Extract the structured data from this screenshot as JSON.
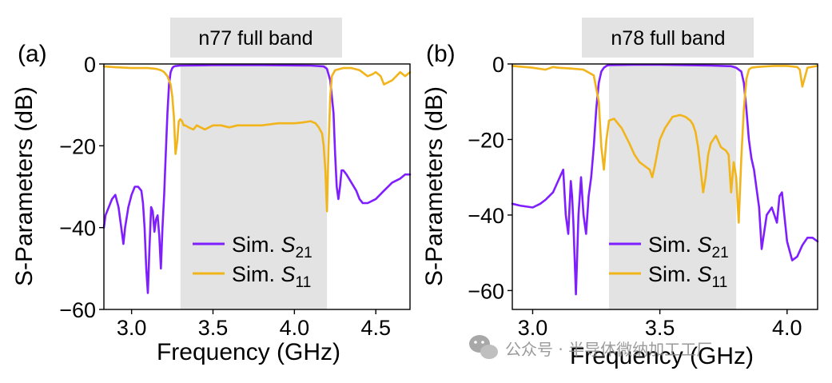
{
  "watermark": {
    "text": "公众号 · 半导体微纳加工工厂",
    "icon": "wechat-icon"
  },
  "colors": {
    "s21": "#7f1fff",
    "s11": "#f2b41b",
    "band": "#e3e3e3"
  },
  "chart_data": [
    {
      "type": "line",
      "panel": "(a)",
      "title": "n77 full band",
      "xlabel": "Frequency (GHz)",
      "ylabel": "S-Parameters (dB)",
      "xlim": [
        2.83,
        4.71
      ],
      "ylim": [
        -60,
        0
      ],
      "xticks": [
        {
          "v": 3.0,
          "label": "3.0"
        },
        {
          "v": 3.5,
          "label": "3.5"
        },
        {
          "v": 4.0,
          "label": "4.0"
        },
        {
          "v": 4.5,
          "label": "4.5"
        }
      ],
      "yticks": [
        {
          "v": 0,
          "label": "0"
        },
        {
          "v": -20,
          "label": "−20"
        },
        {
          "v": -40,
          "label": "−40"
        },
        {
          "v": -60,
          "label": "−60"
        }
      ],
      "band": [
        3.3,
        4.2
      ],
      "legend": {
        "s21_prefix": "Sim. ",
        "s21_sym": "S",
        "s21_sub": "21",
        "s11_prefix": "Sim. ",
        "s11_sym": "S",
        "s11_sub": "11"
      },
      "series": [
        {
          "name": "Sim. S21",
          "key": "s21",
          "x": [
            2.83,
            2.84,
            2.86,
            2.88,
            2.9,
            2.92,
            2.94,
            2.95,
            2.96,
            2.98,
            3.0,
            3.02,
            3.04,
            3.06,
            3.07,
            3.08,
            3.09,
            3.1,
            3.11,
            3.12,
            3.13,
            3.14,
            3.15,
            3.16,
            3.17,
            3.18,
            3.19,
            3.2,
            3.21,
            3.22,
            3.23,
            3.24,
            3.25,
            3.26,
            3.27,
            3.3,
            3.5,
            3.8,
            4.1,
            4.18,
            4.2,
            4.22,
            4.24,
            4.25,
            4.26,
            4.27,
            4.28,
            4.29,
            4.3,
            4.32,
            4.35,
            4.38,
            4.4,
            4.42,
            4.45,
            4.5,
            4.55,
            4.6,
            4.65,
            4.68,
            4.71
          ],
          "y": [
            -40,
            -37,
            -35,
            -33,
            -32,
            -35,
            -41,
            -44,
            -40,
            -35,
            -32,
            -30,
            -30,
            -31,
            -34,
            -40,
            -50,
            -56,
            -45,
            -35,
            -36,
            -41,
            -38,
            -37,
            -42,
            -50,
            -40,
            -32,
            -22,
            -12,
            -5,
            -2,
            -1,
            -0.6,
            -0.5,
            -0.4,
            -0.3,
            -0.3,
            -0.4,
            -0.6,
            -1.2,
            -4,
            -12,
            -22,
            -30,
            -33,
            -30,
            -26,
            -26,
            -27,
            -29,
            -31,
            -33,
            -34,
            -34,
            -33,
            -31,
            -29,
            -28,
            -27,
            -27
          ]
        },
        {
          "name": "Sim. S11",
          "key": "s11",
          "x": [
            2.83,
            2.9,
            3.0,
            3.1,
            3.15,
            3.18,
            3.2,
            3.22,
            3.24,
            3.25,
            3.26,
            3.27,
            3.28,
            3.29,
            3.3,
            3.31,
            3.32,
            3.33,
            3.35,
            3.38,
            3.4,
            3.45,
            3.5,
            3.55,
            3.6,
            3.65,
            3.7,
            3.75,
            3.8,
            3.9,
            4.0,
            4.05,
            4.1,
            4.13,
            4.15,
            4.17,
            4.18,
            4.19,
            4.2,
            4.21,
            4.22,
            4.23,
            4.25,
            4.3,
            4.35,
            4.4,
            4.45,
            4.48,
            4.5,
            4.53,
            4.55,
            4.6,
            4.65,
            4.68,
            4.71
          ],
          "y": [
            -0.6,
            -0.8,
            -1,
            -1,
            -1.2,
            -1.5,
            -2,
            -3,
            -5,
            -8,
            -13,
            -22,
            -19,
            -14,
            -13.5,
            -14,
            -15,
            -15,
            -15.5,
            -16,
            -15,
            -16,
            -15,
            -15,
            -15.5,
            -15,
            -15,
            -15,
            -15,
            -14.5,
            -14.5,
            -14.3,
            -14,
            -14.5,
            -15.5,
            -17,
            -20,
            -26,
            -36,
            -20,
            -8,
            -3,
            -1.5,
            -1,
            -1,
            -1.5,
            -3,
            -2.5,
            -2,
            -3,
            -5,
            -4,
            -2,
            -3,
            -2
          ]
        }
      ]
    },
    {
      "type": "line",
      "panel": "(b)",
      "title": "n78 full band",
      "xlabel": "Frequency (GHz)",
      "ylabel": "S-Parameters (dB)",
      "xlim": [
        2.92,
        4.12
      ],
      "ylim": [
        -65,
        0
      ],
      "xticks": [
        {
          "v": 3.0,
          "label": "3.0"
        },
        {
          "v": 3.5,
          "label": "3.5"
        },
        {
          "v": 4.0,
          "label": "4.0"
        }
      ],
      "yticks": [
        {
          "v": 0,
          "label": "0"
        },
        {
          "v": -20,
          "label": "−20"
        },
        {
          "v": -40,
          "label": "−40"
        },
        {
          "v": -60,
          "label": "−60"
        }
      ],
      "band": [
        3.3,
        3.8
      ],
      "legend": {
        "s21_prefix": "Sim. ",
        "s21_sym": "S",
        "s21_sub": "21",
        "s11_prefix": "Sim. ",
        "s11_sym": "S",
        "s11_sub": "11"
      },
      "series": [
        {
          "name": "Sim. S21",
          "key": "s21",
          "x": [
            2.92,
            2.95,
            3.0,
            3.03,
            3.05,
            3.08,
            3.1,
            3.12,
            3.13,
            3.14,
            3.15,
            3.155,
            3.16,
            3.17,
            3.18,
            3.19,
            3.2,
            3.21,
            3.22,
            3.23,
            3.24,
            3.25,
            3.26,
            3.27,
            3.28,
            3.29,
            3.3,
            3.4,
            3.5,
            3.6,
            3.7,
            3.78,
            3.8,
            3.82,
            3.83,
            3.84,
            3.85,
            3.86,
            3.87,
            3.88,
            3.89,
            3.9,
            3.92,
            3.94,
            3.95,
            3.96,
            3.97,
            3.98,
            4.0,
            4.02,
            4.04,
            4.06,
            4.08,
            4.1,
            4.12
          ],
          "y": [
            -37,
            -37.5,
            -38,
            -37,
            -36,
            -34,
            -31,
            -28,
            -40,
            -45,
            -31,
            -35,
            -42,
            -61,
            -40,
            -30,
            -40,
            -45,
            -35,
            -30,
            -22,
            -12,
            -5,
            -2,
            -1,
            -0.5,
            -0.3,
            -0.2,
            -0.2,
            -0.3,
            -0.4,
            -0.6,
            -1,
            -2,
            -5,
            -12,
            -20,
            -25,
            -28,
            -33,
            -38,
            -49,
            -40,
            -38,
            -40,
            -42,
            -35,
            -34,
            -47,
            -52,
            -51,
            -48,
            -46,
            -46,
            -47
          ]
        },
        {
          "name": "Sim. S11",
          "key": "s11",
          "x": [
            2.92,
            3.0,
            3.05,
            3.08,
            3.1,
            3.15,
            3.2,
            3.24,
            3.26,
            3.27,
            3.28,
            3.29,
            3.3,
            3.32,
            3.35,
            3.38,
            3.4,
            3.42,
            3.44,
            3.46,
            3.47,
            3.48,
            3.5,
            3.52,
            3.55,
            3.58,
            3.6,
            3.62,
            3.63,
            3.64,
            3.65,
            3.66,
            3.67,
            3.68,
            3.69,
            3.7,
            3.72,
            3.74,
            3.76,
            3.77,
            3.78,
            3.79,
            3.8,
            3.81,
            3.82,
            3.83,
            3.84,
            3.85,
            3.86,
            3.88,
            3.9,
            3.95,
            4.0,
            4.04,
            4.05,
            4.06,
            4.08,
            4.12
          ],
          "y": [
            -0.5,
            -1,
            -1.5,
            -0.8,
            -1,
            -1.2,
            -1.5,
            -3,
            -10,
            -22,
            -28,
            -20,
            -15,
            -14.5,
            -17,
            -21,
            -24,
            -26,
            -27,
            -28,
            -30,
            -27,
            -20,
            -17,
            -14,
            -13.5,
            -14,
            -15,
            -16,
            -18,
            -22,
            -28,
            -34,
            -30,
            -24,
            -21,
            -19,
            -22,
            -23,
            -24,
            -34,
            -26,
            -30,
            -42,
            -25,
            -12,
            -4,
            -1.5,
            -1,
            -0.8,
            -0.7,
            -0.5,
            -0.5,
            -0.8,
            -1.5,
            -6,
            -1,
            -0.5
          ]
        }
      ]
    }
  ]
}
